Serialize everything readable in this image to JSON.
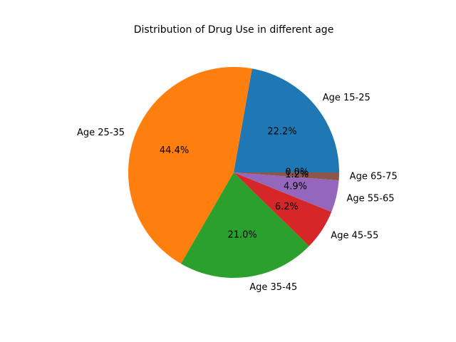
{
  "chart_data": {
    "type": "pie",
    "title": "Distribution of Drug Use in different age",
    "labels": [
      "Age 15-25",
      "Age 25-35",
      "Age 35-45",
      "Age 45-55",
      "Age 55-65",
      "Age 65-75",
      ""
    ],
    "values": [
      22.2,
      44.4,
      21.0,
      6.2,
      4.9,
      1.2,
      0.0
    ],
    "pct_labels": [
      "22.2%",
      "44.4%",
      "21.0%",
      "6.2%",
      "4.9%",
      "1.2%",
      "0.0%"
    ],
    "colors": [
      "#1f77b4",
      "#ff7f0e",
      "#2ca02c",
      "#d62728",
      "#9467bd",
      "#8c564b",
      "#e377c2"
    ],
    "start_angle_deg": 0,
    "direction": "counterclockwise",
    "legend": "none"
  }
}
